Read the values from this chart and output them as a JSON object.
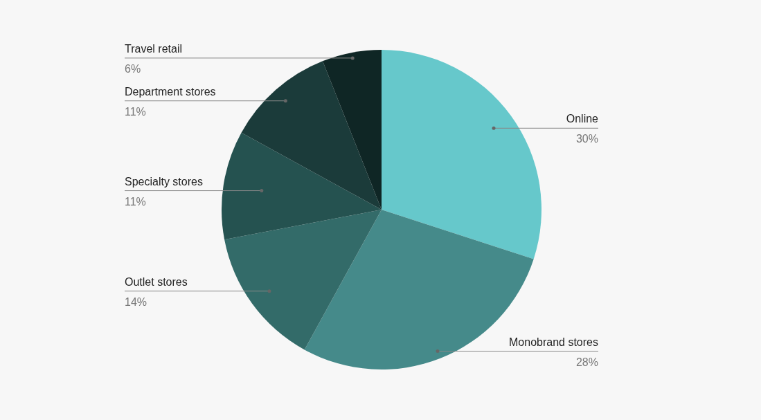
{
  "chart_data": {
    "type": "pie",
    "categories": [
      "Online",
      "Monobrand stores",
      "Outlet stores",
      "Specialty stores",
      "Department stores",
      "Travel retail"
    ],
    "values": [
      30,
      28,
      14,
      11,
      11,
      6
    ],
    "value_labels": [
      "30%",
      "28%",
      "14%",
      "11%",
      "11%",
      "6%"
    ],
    "colors": [
      "#66c8cb",
      "#458a8a",
      "#336b69",
      "#255250",
      "#1b3b3a",
      "#0f2625"
    ],
    "legend": false
  }
}
